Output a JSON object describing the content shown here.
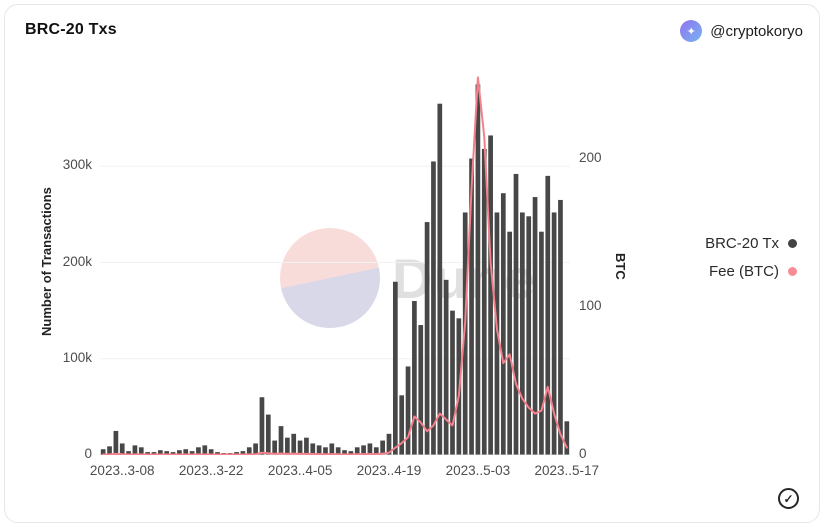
{
  "header": {
    "title": "BRC-20 Txs",
    "handle": "@cryptokoryo"
  },
  "icons": {
    "verified_check": "✓",
    "avatar_glyph": "✦"
  },
  "watermark": {
    "text": "Dune"
  },
  "axes": {
    "left_label": "Number of Transactions",
    "right_label": "BTC",
    "left_ticks": [
      {
        "label": "0",
        "value": 0
      },
      {
        "label": "100k",
        "value": 100000
      },
      {
        "label": "200k",
        "value": 200000
      },
      {
        "label": "300k",
        "value": 300000
      }
    ],
    "right_ticks": [
      {
        "label": "0",
        "value": 0
      },
      {
        "label": "100",
        "value": 100
      },
      {
        "label": "200",
        "value": 200
      }
    ],
    "x_ticks": [
      {
        "label": "2023..3-08",
        "index": 3
      },
      {
        "label": "2023..3-22",
        "index": 17
      },
      {
        "label": "2023..4-05",
        "index": 31
      },
      {
        "label": "2023..4-19",
        "index": 45
      },
      {
        "label": "2023..5-03",
        "index": 59
      },
      {
        "label": "2023..5-17",
        "index": 73
      }
    ]
  },
  "legend": [
    {
      "label": "BRC-20 Tx",
      "color": "#434343"
    },
    {
      "label": "Fee (BTC)",
      "color": "#f88b95"
    }
  ],
  "chart_data": {
    "type": "bar+line",
    "title": "BRC-20 Txs",
    "xlabel": "",
    "ylabel_left": "Number of Transactions",
    "ylabel_right": "BTC",
    "left_axis_max": 400000,
    "right_axis_max": 260,
    "grid": "faint-horizontal",
    "legend_position": "right",
    "x": [
      "2023-03-05",
      "2023-03-06",
      "2023-03-07",
      "2023-03-08",
      "2023-03-09",
      "2023-03-10",
      "2023-03-11",
      "2023-03-12",
      "2023-03-13",
      "2023-03-14",
      "2023-03-15",
      "2023-03-16",
      "2023-03-17",
      "2023-03-18",
      "2023-03-19",
      "2023-03-20",
      "2023-03-21",
      "2023-03-22",
      "2023-03-23",
      "2023-03-24",
      "2023-03-25",
      "2023-03-26",
      "2023-03-27",
      "2023-03-28",
      "2023-03-29",
      "2023-03-30",
      "2023-03-31",
      "2023-04-01",
      "2023-04-02",
      "2023-04-03",
      "2023-04-04",
      "2023-04-05",
      "2023-04-06",
      "2023-04-07",
      "2023-04-08",
      "2023-04-09",
      "2023-04-10",
      "2023-04-11",
      "2023-04-12",
      "2023-04-13",
      "2023-04-14",
      "2023-04-15",
      "2023-04-16",
      "2023-04-17",
      "2023-04-18",
      "2023-04-19",
      "2023-04-20",
      "2023-04-21",
      "2023-04-22",
      "2023-04-23",
      "2023-04-24",
      "2023-04-25",
      "2023-04-26",
      "2023-04-27",
      "2023-04-28",
      "2023-04-29",
      "2023-04-30",
      "2023-05-01",
      "2023-05-02",
      "2023-05-03",
      "2023-05-04",
      "2023-05-05",
      "2023-05-06",
      "2023-05-07",
      "2023-05-08",
      "2023-05-09",
      "2023-05-10",
      "2023-05-11",
      "2023-05-12",
      "2023-05-13",
      "2023-05-14",
      "2023-05-15",
      "2023-05-16",
      "2023-05-17"
    ],
    "series": [
      {
        "name": "BRC-20 Tx",
        "type": "bar",
        "axis": "left",
        "color": "#474747",
        "values": [
          6000,
          9000,
          25000,
          12000,
          4000,
          10000,
          8000,
          3000,
          3000,
          5000,
          4000,
          3000,
          5000,
          6000,
          4000,
          8000,
          10000,
          6000,
          3000,
          2000,
          2000,
          3000,
          4000,
          8000,
          12000,
          60000,
          42000,
          15000,
          30000,
          18000,
          22000,
          15000,
          18000,
          12000,
          10000,
          8000,
          12000,
          8000,
          5000,
          4000,
          8000,
          10000,
          12000,
          8000,
          15000,
          22000,
          180000,
          62000,
          92000,
          160000,
          135000,
          242000,
          305000,
          365000,
          182000,
          150000,
          142000,
          252000,
          308000,
          385000,
          318000,
          332000,
          252000,
          272000,
          232000,
          292000,
          252000,
          248000,
          268000,
          232000,
          290000,
          252000,
          265000,
          35000
        ]
      },
      {
        "name": "Fee (BTC)",
        "type": "line",
        "axis": "right",
        "color": "#f4808c",
        "values": [
          0.3,
          0.4,
          0.8,
          0.5,
          0.3,
          0.4,
          0.4,
          0.2,
          0.2,
          0.3,
          0.2,
          0.2,
          0.3,
          0.3,
          0.2,
          0.4,
          0.4,
          0.3,
          0.2,
          0.2,
          0.2,
          0.2,
          0.3,
          0.4,
          0.5,
          1.5,
          1.2,
          0.8,
          1,
          0.8,
          0.9,
          0.8,
          0.8,
          0.7,
          0.6,
          0.5,
          0.6,
          0.5,
          0.4,
          0.4,
          0.5,
          0.6,
          0.7,
          0.6,
          0.9,
          1.5,
          5,
          8,
          12,
          26,
          22,
          16,
          20,
          28,
          24,
          20,
          40,
          90,
          180,
          255,
          215,
          130,
          85,
          62,
          68,
          48,
          38,
          32,
          28,
          30,
          46,
          28,
          14,
          5
        ]
      }
    ]
  }
}
